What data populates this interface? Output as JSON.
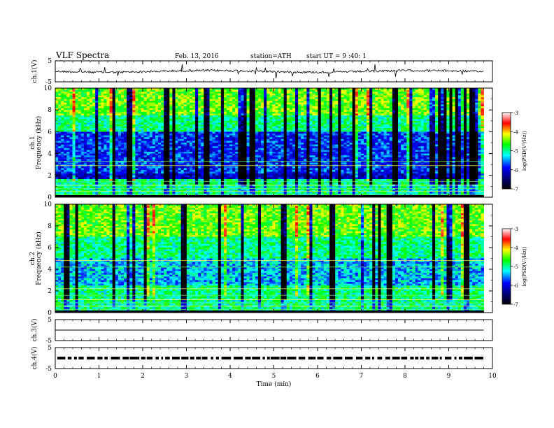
{
  "header": {
    "title": "VLF Spectra",
    "date": "Feb. 13, 2016",
    "station": "station=ATH",
    "start": "start  UT =  9 :40: 1"
  },
  "chart_data": [
    {
      "type": "line",
      "id": "ch1",
      "ylabel": "ch.1(V)",
      "ylim": [
        -5,
        5
      ],
      "yticks": [
        "5",
        "-5"
      ],
      "xlim": [
        0,
        10
      ],
      "series": [
        {
          "values_approx": "waveform around 0 V with small fluctuations and sporadic spikes",
          "baseline": 0.0
        }
      ]
    },
    {
      "type": "heatmap",
      "id": "ch1-spectrogram",
      "ylabel": "ch.1",
      "ylabel2": "Frequency (kHz)",
      "ylim": [
        0,
        10
      ],
      "yticks": [
        "0",
        "2",
        "4",
        "6",
        "8",
        "10"
      ],
      "xlim": [
        0,
        10
      ],
      "data_extent_min": 9.8,
      "colorbar": {
        "label": "log(PSD(V²/Hz))",
        "range": [
          -7,
          -3
        ],
        "ticks": [
          "-3",
          "-4",
          "-5",
          "-6",
          "-7"
        ]
      }
    },
    {
      "type": "heatmap",
      "id": "ch2-spectrogram",
      "ylabel": "ch.2",
      "ylabel2": "Frequency (kHz)",
      "ylim": [
        0,
        10
      ],
      "yticks": [
        "0",
        "2",
        "4",
        "6",
        "8",
        "10"
      ],
      "xlim": [
        0,
        10
      ],
      "data_extent_min": 9.8,
      "colorbar": {
        "label": "log(PSD(V²/Hz))",
        "range": [
          -7,
          -3
        ],
        "ticks": [
          "-3",
          "-4",
          "-5",
          "-6",
          "-7"
        ]
      }
    },
    {
      "type": "line",
      "id": "ch3",
      "ylabel": "ch.3(V)",
      "ylim": [
        -5,
        5
      ],
      "yticks": [
        "5",
        "-5"
      ],
      "xlim": [
        0,
        10
      ],
      "series": [
        {
          "baseline": 0.0
        }
      ]
    },
    {
      "type": "line",
      "id": "ch4",
      "ylabel": "ch.4(V)",
      "ylim": [
        -5,
        5
      ],
      "yticks": [
        "5",
        "-5"
      ],
      "xlim": [
        0,
        10
      ],
      "series": [
        {
          "baseline": 0.0,
          "values_approx": "dashed digital pulse train near 0 V"
        }
      ]
    }
  ],
  "xaxis": {
    "label": "Time (min)",
    "ticks": [
      "0",
      "1",
      "2",
      "3",
      "4",
      "5",
      "6",
      "7",
      "8",
      "9",
      "10"
    ]
  },
  "colormap": [
    "#000000",
    "#00007a",
    "#0000ff",
    "#00ffff",
    "#00ff00",
    "#ffff00",
    "#ff0000",
    "#ffffff"
  ]
}
